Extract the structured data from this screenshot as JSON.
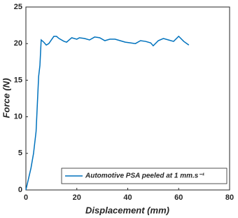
{
  "chart_data": {
    "type": "line",
    "xlabel": "Displacement (mm)",
    "ylabel": "Force (N)",
    "xlim": [
      0,
      80
    ],
    "xticks": [
      0,
      20,
      40,
      60,
      80
    ],
    "ylim": [
      0,
      25
    ],
    "yticks": [
      0,
      5,
      10,
      15,
      20,
      25
    ],
    "x": [
      0,
      2,
      3,
      4,
      5,
      5.5,
      6,
      7,
      8,
      9,
      10,
      11,
      12,
      13,
      15,
      16,
      17,
      18,
      20,
      21,
      23,
      25,
      27,
      29,
      31,
      33,
      35,
      37,
      39,
      41,
      43,
      45,
      47,
      49,
      50,
      52,
      54,
      56,
      58,
      60,
      62,
      64
    ],
    "series": [
      {
        "name": "Automotive PSA peeled at 1 mm.s⁻¹",
        "color": "#0072bd",
        "values": [
          0,
          3,
          5,
          8,
          15.5,
          17,
          20.5,
          20.2,
          19.8,
          20,
          20.5,
          21,
          21,
          20.7,
          20.3,
          20.2,
          20.5,
          20.8,
          20.6,
          20.8,
          20.7,
          20.5,
          20.9,
          20.8,
          20.4,
          20.6,
          20.6,
          20.4,
          20.2,
          20.1,
          20,
          20.4,
          20.3,
          20.1,
          19.7,
          20.4,
          20.7,
          20.5,
          20.3,
          21,
          20.3,
          19.8
        ]
      }
    ],
    "legend": "lower right"
  }
}
